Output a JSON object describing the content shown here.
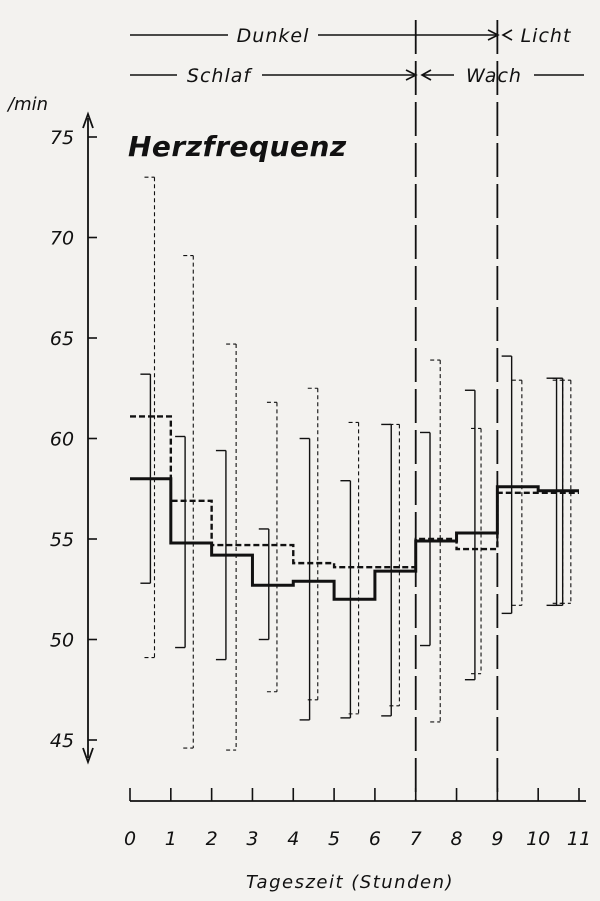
{
  "chart_data": {
    "type": "line",
    "title": "Herzfrequenz",
    "xlabel": "Tageszeit (Stunden)",
    "ylabel": "/min",
    "xlim": [
      0,
      11
    ],
    "ylim": [
      45,
      75
    ],
    "x_ticks": [
      0,
      1,
      2,
      3,
      4,
      5,
      6,
      7,
      8,
      9,
      10,
      11
    ],
    "y_ticks": [
      45,
      50,
      55,
      60,
      65,
      70,
      75
    ],
    "grid": false,
    "bands": [
      {
        "label": "Dunkel",
        "from": 0,
        "to": 9,
        "row": 1
      },
      {
        "label": "Licht",
        "from": 9,
        "to": 11,
        "row": 1
      },
      {
        "label": "Schlaf",
        "from": 0,
        "to": 7,
        "row": 2
      },
      {
        "label": "Wach",
        "from": 7,
        "to": 11,
        "row": 2
      }
    ],
    "vlines": [
      7,
      9
    ],
    "series": [
      {
        "style": "solid",
        "x": [
          0,
          1,
          2,
          3,
          4,
          5,
          6,
          7,
          8,
          9,
          10,
          11
        ],
        "y": [
          58.0,
          54.8,
          54.2,
          52.7,
          52.9,
          52.0,
          53.4,
          54.9,
          55.3,
          57.6,
          57.4,
          57.4
        ],
        "error_low": [
          52.8,
          49.6,
          49.0,
          50.0,
          46.0,
          46.1,
          46.2,
          49.7,
          48.0,
          51.3,
          51.7,
          51.7
        ],
        "error_high": [
          63.2,
          60.1,
          59.4,
          55.5,
          60.0,
          57.9,
          60.7,
          60.3,
          62.4,
          64.1,
          63.0,
          63.0
        ],
        "error_x": [
          0.5,
          1.35,
          2.35,
          3.4,
          4.4,
          5.4,
          6.4,
          7.35,
          8.45,
          9.35,
          10.45,
          10.6
        ]
      },
      {
        "style": "dashed",
        "x": [
          0,
          1,
          2,
          3,
          4,
          5,
          6,
          7,
          8,
          9,
          10,
          11
        ],
        "y": [
          61.1,
          56.9,
          54.7,
          54.7,
          53.8,
          53.6,
          53.6,
          55.0,
          54.5,
          57.3,
          57.3,
          57.3
        ],
        "error_low": [
          49.1,
          44.6,
          44.5,
          47.4,
          47.0,
          46.3,
          46.7,
          45.9,
          48.3,
          51.7,
          51.8,
          51.8
        ],
        "error_high": [
          73.0,
          69.1,
          64.7,
          61.8,
          62.5,
          60.8,
          60.7,
          63.9,
          60.5,
          62.9,
          62.9,
          62.9
        ],
        "error_x": [
          0.6,
          1.55,
          2.6,
          3.6,
          4.6,
          5.6,
          6.6,
          7.6,
          8.6,
          9.6,
          10.6,
          10.8
        ]
      }
    ]
  }
}
